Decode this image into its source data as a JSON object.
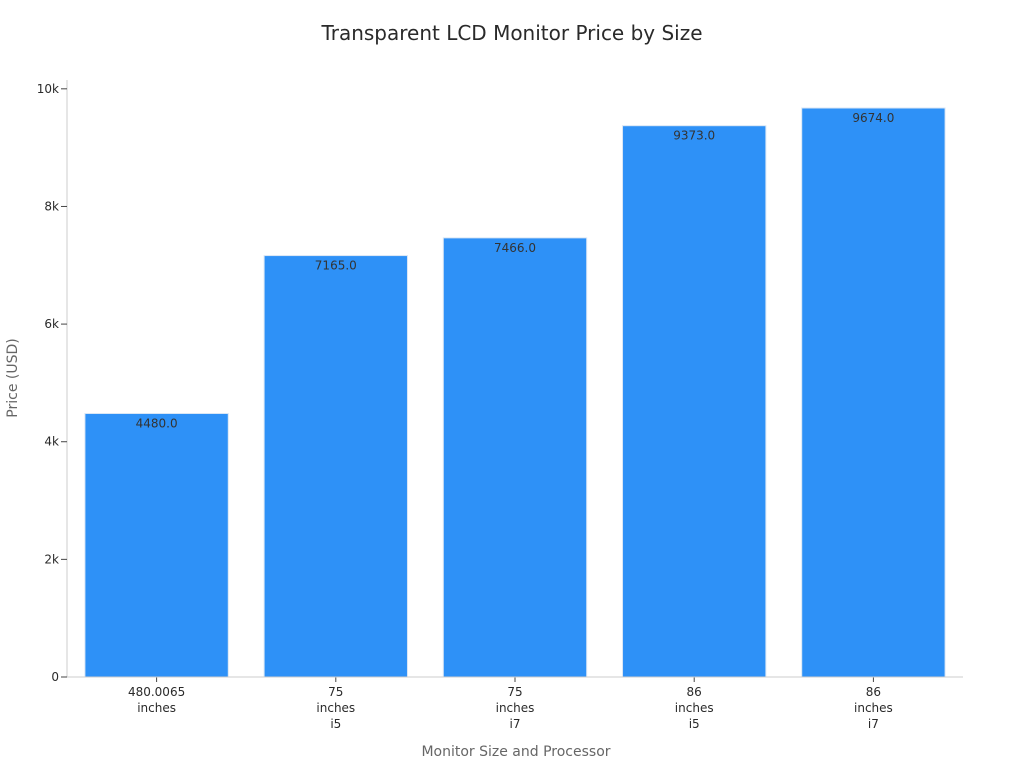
{
  "chart_data": {
    "type": "bar",
    "title": "Transparent LCD Monitor Price by Size",
    "xlabel": "Monitor Size and Processor",
    "ylabel": "Price (USD)",
    "categories": [
      [
        "480.0065",
        "inches"
      ],
      [
        "75",
        "inches",
        "i5"
      ],
      [
        "75",
        "inches",
        "i7"
      ],
      [
        "86",
        "inches",
        "i5"
      ],
      [
        "86",
        "inches",
        "i7"
      ]
    ],
    "values": [
      4480.0,
      7165.0,
      7466.0,
      9373.0,
      9674.0
    ],
    "data_labels": [
      "4480.0",
      "7165.0",
      "7466.0",
      "9373.0",
      "9674.0"
    ],
    "ylim": [
      0,
      10150
    ],
    "y_ticks": [
      0,
      2000,
      4000,
      6000,
      8000,
      10000
    ],
    "y_tick_labels": [
      "0",
      "2k",
      "4k",
      "6k",
      "8k",
      "10k"
    ],
    "bar_color": "#2e91f7",
    "grid": false,
    "legend": "none"
  }
}
